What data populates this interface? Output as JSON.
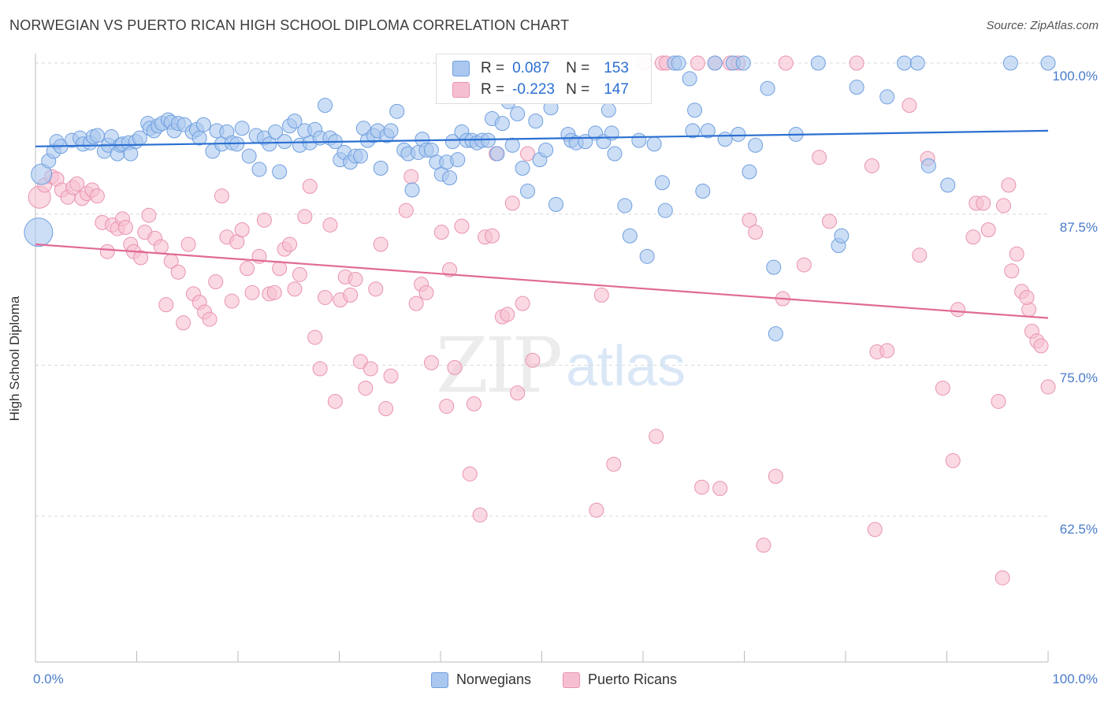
{
  "header": {
    "title": "NORWEGIAN VS PUERTO RICAN HIGH SCHOOL DIPLOMA CORRELATION CHART",
    "source": "Source: ZipAtlas.com"
  },
  "watermark": {
    "zip": "ZIP",
    "atlas": "atlas"
  },
  "stats": {
    "norwegians": {
      "r_label": "R =",
      "r_value": "0.087",
      "n_label": "N =",
      "n_value": "153"
    },
    "puerto_ricans": {
      "r_label": "R =",
      "r_value": "-0.223",
      "n_label": "N =",
      "n_value": "147"
    }
  },
  "colors": {
    "blue_fill": "#aac8ef",
    "blue_stroke": "#6f9fe0",
    "blue_line": "#2b6fd1",
    "pink_fill": "#f6bfd1",
    "pink_stroke": "#e993b0",
    "pink_line": "#e06a96",
    "grid": "#d9d9d9",
    "tick_text": "#4a7cc9"
  },
  "chart_data": {
    "type": "scatter",
    "title": "NORWEGIAN VS PUERTO RICAN HIGH SCHOOL DIPLOMA CORRELATION CHART",
    "xlabel": "",
    "ylabel": "High School Diploma",
    "xlim": [
      0,
      100
    ],
    "ylim": [
      51,
      100
    ],
    "x_tick_labels": [
      "0.0%",
      "100.0%"
    ],
    "y_ticks": [
      62.5,
      75.0,
      87.5,
      100.0
    ],
    "y_tick_labels": [
      "62.5%",
      "75.0%",
      "87.5%",
      "100.0%"
    ],
    "grid": "horizontal dashed",
    "legend_position": "bottom-center",
    "series": [
      {
        "name": "Norwegians",
        "r": 0.087,
        "n": 153,
        "trend": {
          "x": [
            0,
            100
          ],
          "y": [
            93.1,
            94.4
          ]
        },
        "points": [
          [
            0.3,
            86.0
          ],
          [
            0.6,
            90.8
          ],
          [
            1.3,
            91.9
          ],
          [
            1.8,
            92.7
          ],
          [
            2.1,
            93.5
          ],
          [
            2.5,
            93.1
          ],
          [
            3.6,
            93.6
          ],
          [
            4.4,
            93.8
          ],
          [
            4.7,
            93.3
          ],
          [
            5.4,
            93.4
          ],
          [
            5.7,
            93.9
          ],
          [
            6.1,
            94.0
          ],
          [
            6.8,
            92.7
          ],
          [
            7.2,
            93.2
          ],
          [
            7.5,
            93.9
          ],
          [
            8.1,
            92.5
          ],
          [
            8.4,
            93.2
          ],
          [
            8.6,
            93.3
          ],
          [
            9.2,
            93.4
          ],
          [
            9.4,
            92.5
          ],
          [
            9.9,
            93.5
          ],
          [
            10.3,
            93.8
          ],
          [
            11.1,
            95.0
          ],
          [
            11.3,
            94.6
          ],
          [
            11.7,
            94.4
          ],
          [
            12.1,
            94.8
          ],
          [
            12.5,
            95.0
          ],
          [
            13.1,
            95.3
          ],
          [
            13.4,
            95.1
          ],
          [
            13.7,
            94.4
          ],
          [
            14.1,
            95.0
          ],
          [
            14.7,
            94.9
          ],
          [
            15.5,
            94.3
          ],
          [
            15.9,
            94.5
          ],
          [
            16.2,
            93.8
          ],
          [
            16.6,
            94.9
          ],
          [
            17.5,
            92.7
          ],
          [
            17.9,
            94.4
          ],
          [
            18.4,
            93.3
          ],
          [
            18.9,
            94.3
          ],
          [
            19.4,
            93.4
          ],
          [
            19.9,
            93.3
          ],
          [
            20.4,
            94.6
          ],
          [
            21.1,
            92.3
          ],
          [
            21.8,
            94.0
          ],
          [
            22.1,
            91.2
          ],
          [
            22.6,
            93.8
          ],
          [
            23.1,
            93.3
          ],
          [
            23.7,
            94.3
          ],
          [
            24.1,
            91.0
          ],
          [
            24.6,
            93.5
          ],
          [
            25.1,
            94.8
          ],
          [
            25.6,
            95.2
          ],
          [
            26.1,
            93.2
          ],
          [
            26.6,
            94.4
          ],
          [
            27.1,
            93.4
          ],
          [
            27.6,
            94.5
          ],
          [
            28.1,
            93.8
          ],
          [
            28.6,
            96.5
          ],
          [
            29.1,
            93.8
          ],
          [
            29.6,
            93.5
          ],
          [
            30.1,
            92.0
          ],
          [
            30.5,
            92.6
          ],
          [
            31.1,
            91.8
          ],
          [
            31.6,
            92.3
          ],
          [
            32.1,
            92.3
          ],
          [
            32.4,
            94.6
          ],
          [
            32.8,
            93.6
          ],
          [
            33.4,
            94.0
          ],
          [
            33.8,
            94.4
          ],
          [
            34.1,
            91.3
          ],
          [
            34.7,
            94.0
          ],
          [
            35.1,
            94.4
          ],
          [
            35.7,
            96.0
          ],
          [
            36.4,
            92.8
          ],
          [
            36.8,
            92.5
          ],
          [
            37.2,
            89.5
          ],
          [
            37.8,
            92.6
          ],
          [
            38.2,
            93.7
          ],
          [
            38.6,
            92.8
          ],
          [
            39.1,
            92.8
          ],
          [
            39.6,
            91.8
          ],
          [
            40.1,
            90.8
          ],
          [
            40.6,
            91.8
          ],
          [
            40.9,
            90.5
          ],
          [
            41.2,
            93.5
          ],
          [
            41.7,
            92.0
          ],
          [
            42.1,
            94.3
          ],
          [
            42.6,
            93.6
          ],
          [
            43.1,
            93.6
          ],
          [
            43.6,
            93.4
          ],
          [
            44.1,
            93.6
          ],
          [
            44.7,
            93.6
          ],
          [
            45.1,
            95.4
          ],
          [
            45.6,
            92.5
          ],
          [
            46.1,
            95.0
          ],
          [
            46.7,
            96.8
          ],
          [
            47.1,
            93.2
          ],
          [
            47.6,
            95.8
          ],
          [
            48.1,
            91.3
          ],
          [
            48.6,
            89.4
          ],
          [
            49.4,
            95.2
          ],
          [
            49.8,
            92.0
          ],
          [
            50.4,
            92.8
          ],
          [
            50.9,
            96.3
          ],
          [
            51.4,
            88.3
          ],
          [
            52.6,
            94.1
          ],
          [
            52.9,
            93.6
          ],
          [
            53.4,
            93.4
          ],
          [
            54.3,
            93.5
          ],
          [
            55.3,
            94.2
          ],
          [
            56.1,
            93.5
          ],
          [
            56.6,
            96.1
          ],
          [
            56.9,
            94.2
          ],
          [
            57.2,
            92.5
          ],
          [
            58.2,
            88.2
          ],
          [
            58.7,
            85.7
          ],
          [
            59.6,
            93.6
          ],
          [
            60.4,
            84.0
          ],
          [
            61.1,
            93.3
          ],
          [
            61.9,
            90.1
          ],
          [
            62.2,
            87.8
          ],
          [
            63.1,
            100.0
          ],
          [
            63.5,
            100.0
          ],
          [
            64.6,
            98.7
          ],
          [
            64.9,
            94.4
          ],
          [
            65.1,
            96.1
          ],
          [
            65.9,
            89.4
          ],
          [
            66.4,
            94.4
          ],
          [
            67.1,
            100.0
          ],
          [
            68.1,
            93.7
          ],
          [
            68.9,
            100.0
          ],
          [
            69.4,
            94.1
          ],
          [
            69.9,
            100.0
          ],
          [
            70.5,
            91.0
          ],
          [
            71.1,
            93.2
          ],
          [
            72.3,
            97.9
          ],
          [
            72.9,
            83.1
          ],
          [
            73.1,
            77.6
          ],
          [
            75.1,
            94.1
          ],
          [
            77.3,
            100.0
          ],
          [
            79.3,
            84.9
          ],
          [
            79.6,
            85.7
          ],
          [
            81.1,
            98.0
          ],
          [
            84.1,
            97.2
          ],
          [
            85.8,
            100.0
          ],
          [
            87.1,
            100.0
          ],
          [
            88.2,
            91.5
          ],
          [
            90.1,
            89.9
          ],
          [
            96.3,
            100.0
          ],
          [
            100.0,
            100.0
          ]
        ]
      },
      {
        "name": "Puerto Ricans",
        "r": -0.223,
        "n": 147,
        "trend": {
          "x": [
            0,
            100
          ],
          "y": [
            85.0,
            78.9
          ]
        },
        "points": [
          [
            0.4,
            88.9
          ],
          [
            0.9,
            89.9
          ],
          [
            1.6,
            90.6
          ],
          [
            2.1,
            90.4
          ],
          [
            2.6,
            89.5
          ],
          [
            3.2,
            88.9
          ],
          [
            3.7,
            89.7
          ],
          [
            4.1,
            90.0
          ],
          [
            4.6,
            88.8
          ],
          [
            5.1,
            89.2
          ],
          [
            5.6,
            89.5
          ],
          [
            6.1,
            89.0
          ],
          [
            6.6,
            86.8
          ],
          [
            7.1,
            84.4
          ],
          [
            7.6,
            86.6
          ],
          [
            8.1,
            86.3
          ],
          [
            8.6,
            87.1
          ],
          [
            8.9,
            86.4
          ],
          [
            9.4,
            85.0
          ],
          [
            9.7,
            84.4
          ],
          [
            10.4,
            83.9
          ],
          [
            10.8,
            86.0
          ],
          [
            11.2,
            87.4
          ],
          [
            11.8,
            85.5
          ],
          [
            12.4,
            84.8
          ],
          [
            12.9,
            80.0
          ],
          [
            13.4,
            83.6
          ],
          [
            14.1,
            82.7
          ],
          [
            14.6,
            78.5
          ],
          [
            15.1,
            85.0
          ],
          [
            15.6,
            80.9
          ],
          [
            16.2,
            80.2
          ],
          [
            16.7,
            79.4
          ],
          [
            17.2,
            78.8
          ],
          [
            17.8,
            81.9
          ],
          [
            18.4,
            89.0
          ],
          [
            18.9,
            85.6
          ],
          [
            19.4,
            80.3
          ],
          [
            19.9,
            85.2
          ],
          [
            20.4,
            86.2
          ],
          [
            20.9,
            83.0
          ],
          [
            21.4,
            81.0
          ],
          [
            22.1,
            84.0
          ],
          [
            22.6,
            87.0
          ],
          [
            23.1,
            80.9
          ],
          [
            23.6,
            81.0
          ],
          [
            24.1,
            83.0
          ],
          [
            24.6,
            84.6
          ],
          [
            25.1,
            85.0
          ],
          [
            25.6,
            81.3
          ],
          [
            26.1,
            82.5
          ],
          [
            26.6,
            87.3
          ],
          [
            27.1,
            89.8
          ],
          [
            27.6,
            77.3
          ],
          [
            28.1,
            74.7
          ],
          [
            28.6,
            80.6
          ],
          [
            29.1,
            86.6
          ],
          [
            29.6,
            72.0
          ],
          [
            30.1,
            80.4
          ],
          [
            30.6,
            82.3
          ],
          [
            31.1,
            80.8
          ],
          [
            31.6,
            82.1
          ],
          [
            32.1,
            75.3
          ],
          [
            32.6,
            73.1
          ],
          [
            33.1,
            74.7
          ],
          [
            33.6,
            81.3
          ],
          [
            34.1,
            85.0
          ],
          [
            34.6,
            71.4
          ],
          [
            35.1,
            74.1
          ],
          [
            36.6,
            87.8
          ],
          [
            37.1,
            90.6
          ],
          [
            37.6,
            80.1
          ],
          [
            38.1,
            81.7
          ],
          [
            38.6,
            81.0
          ],
          [
            39.1,
            75.2
          ],
          [
            40.1,
            86.0
          ],
          [
            40.6,
            71.6
          ],
          [
            40.9,
            82.9
          ],
          [
            41.4,
            74.8
          ],
          [
            42.1,
            86.5
          ],
          [
            42.9,
            66.0
          ],
          [
            43.3,
            71.8
          ],
          [
            43.9,
            62.6
          ],
          [
            44.4,
            85.6
          ],
          [
            45.1,
            85.7
          ],
          [
            45.5,
            92.5
          ],
          [
            46.1,
            79.0
          ],
          [
            46.6,
            79.2
          ],
          [
            47.1,
            88.4
          ],
          [
            47.6,
            72.7
          ],
          [
            48.1,
            80.1
          ],
          [
            48.6,
            92.5
          ],
          [
            49.1,
            75.4
          ],
          [
            50.1,
            100.0
          ],
          [
            55.4,
            63.0
          ],
          [
            55.9,
            80.8
          ],
          [
            57.1,
            66.8
          ],
          [
            60.1,
            100.0
          ],
          [
            61.3,
            69.1
          ],
          [
            61.9,
            100.0
          ],
          [
            62.3,
            100.0
          ],
          [
            65.4,
            100.0
          ],
          [
            65.8,
            64.9
          ],
          [
            67.1,
            100.0
          ],
          [
            67.6,
            64.8
          ],
          [
            68.6,
            100.0
          ],
          [
            69.4,
            100.0
          ],
          [
            70.5,
            87.0
          ],
          [
            71.1,
            86.0
          ],
          [
            71.9,
            60.1
          ],
          [
            73.1,
            65.8
          ],
          [
            73.8,
            80.5
          ],
          [
            74.1,
            100.0
          ],
          [
            75.9,
            83.3
          ],
          [
            77.4,
            92.2
          ],
          [
            78.4,
            86.9
          ],
          [
            81.1,
            100.0
          ],
          [
            82.6,
            91.5
          ],
          [
            82.9,
            61.4
          ],
          [
            83.1,
            76.1
          ],
          [
            84.1,
            76.2
          ],
          [
            86.3,
            96.5
          ],
          [
            87.3,
            84.1
          ],
          [
            88.1,
            92.1
          ],
          [
            89.6,
            73.1
          ],
          [
            90.6,
            67.1
          ],
          [
            91.1,
            79.6
          ],
          [
            92.6,
            85.6
          ],
          [
            92.9,
            88.4
          ],
          [
            93.6,
            88.4
          ],
          [
            94.1,
            86.2
          ],
          [
            95.1,
            72.0
          ],
          [
            95.6,
            88.2
          ],
          [
            96.1,
            89.9
          ],
          [
            96.9,
            84.2
          ],
          [
            97.4,
            81.1
          ],
          [
            98.1,
            79.6
          ],
          [
            98.4,
            77.8
          ],
          [
            98.9,
            77.0
          ],
          [
            99.3,
            76.6
          ],
          [
            100.0,
            73.2
          ],
          [
            97.9,
            80.6
          ],
          [
            95.5,
            57.4
          ],
          [
            96.4,
            82.8
          ]
        ]
      }
    ]
  },
  "legend": {
    "items": [
      {
        "label": "Norwegians"
      },
      {
        "label": "Puerto Ricans"
      }
    ]
  }
}
